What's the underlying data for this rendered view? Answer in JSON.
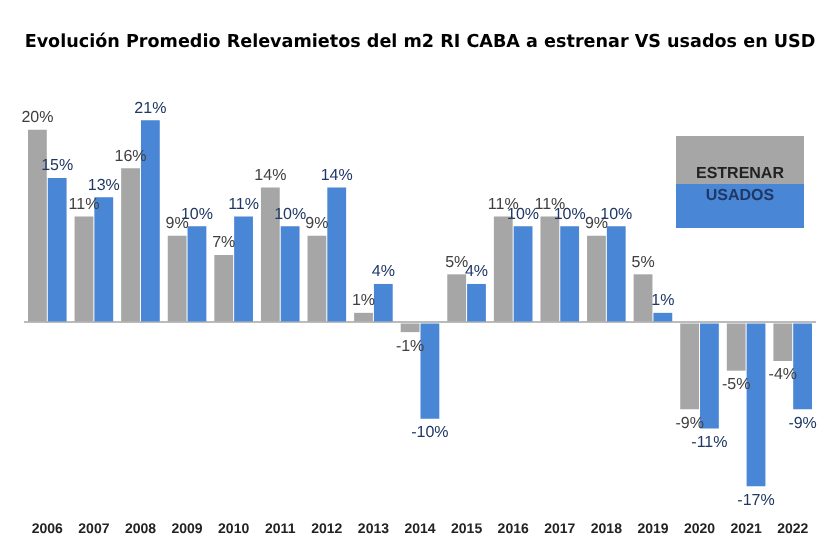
{
  "chart_data": {
    "type": "bar",
    "title": "Evolución Promedio Relevamietos del m2 RI CABA a estrenar VS usados en USD",
    "categories": [
      "2006",
      "2007",
      "2008",
      "2009",
      "2010",
      "2011",
      "2012",
      "2013",
      "2014",
      "2015",
      "2016",
      "2017",
      "2018",
      "2019",
      "2020",
      "2021",
      "2022"
    ],
    "series": [
      {
        "name": "ESTRENAR",
        "color": "#a6a6a6",
        "values": [
          20,
          11,
          16,
          9,
          7,
          14,
          9,
          1,
          -1,
          5,
          11,
          11,
          9,
          5,
          -9,
          -5,
          -4
        ],
        "value_labels": [
          "20%",
          "11%",
          "16%",
          "9%",
          "7%",
          "14%",
          "9%",
          "1%",
          "-1%",
          "5%",
          "11%",
          "11%",
          "9%",
          "5%",
          "-9%",
          "-5%",
          "-4%"
        ]
      },
      {
        "name": "USADOS",
        "color": "#4a86d6",
        "values": [
          15,
          13,
          21,
          10,
          11,
          10,
          14,
          4,
          -10,
          4,
          10,
          10,
          10,
          1,
          -11,
          -17,
          -9
        ],
        "value_labels": [
          "15%",
          "13%",
          "21%",
          "10%",
          "11%",
          "10%",
          "14%",
          "4%",
          "-10%",
          "4%",
          "10%",
          "10%",
          "10%",
          "1%",
          "-11%",
          "-17%",
          "-9%"
        ]
      }
    ],
    "legend": "top right",
    "grid": false
  }
}
